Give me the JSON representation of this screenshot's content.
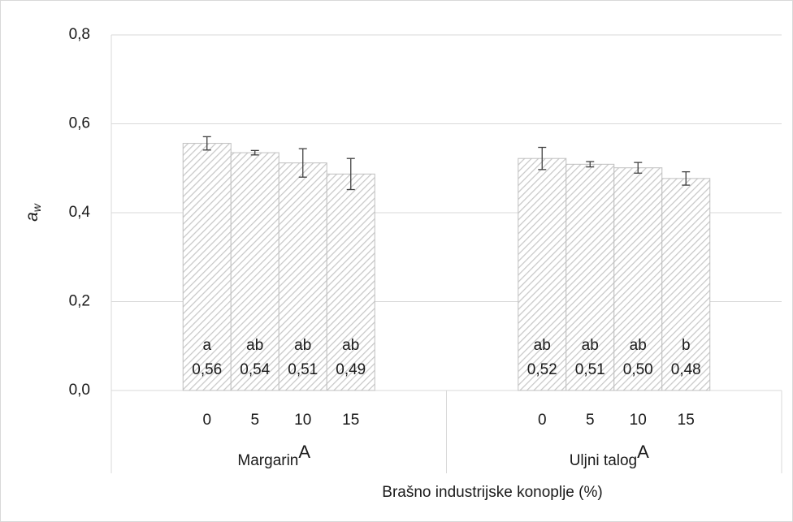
{
  "chart_data": {
    "type": "bar",
    "y_label": "a",
    "y_label_sub": "w",
    "x_label": "Brašno industrijske konoplje (%)",
    "categories": [
      "0",
      "5",
      "10",
      "15",
      "0",
      "5",
      "10",
      "15"
    ],
    "groups": [
      {
        "name": "Margarin",
        "note": "A"
      },
      {
        "name": "Uljni talog",
        "note": "A"
      }
    ],
    "series": [
      {
        "color": "#bfbfbf",
        "values": [
          0.556,
          0.535,
          0.512,
          0.487,
          0.522,
          0.509,
          0.501,
          0.477
        ],
        "errors": [
          0.015,
          0.005,
          0.032,
          0.035,
          0.025,
          0.006,
          0.012,
          0.015
        ],
        "value_labels": [
          "0,56",
          "0,54",
          "0,51",
          "0,49",
          "0,52",
          "0,51",
          "0,50",
          "0,48"
        ],
        "letters": [
          "a",
          "ab",
          "ab",
          "ab",
          "ab",
          "ab",
          "ab",
          "b"
        ]
      }
    ],
    "ylim": [
      0,
      0.8
    ],
    "yticks": [
      {
        "value": 0,
        "label": "0,0"
      },
      {
        "value": 0.2,
        "label": "0,2"
      },
      {
        "value": 0.4,
        "label": "0,4"
      },
      {
        "value": 0.6,
        "label": "0,6"
      },
      {
        "value": 0.8,
        "label": "0,8"
      }
    ],
    "grid": true
  }
}
